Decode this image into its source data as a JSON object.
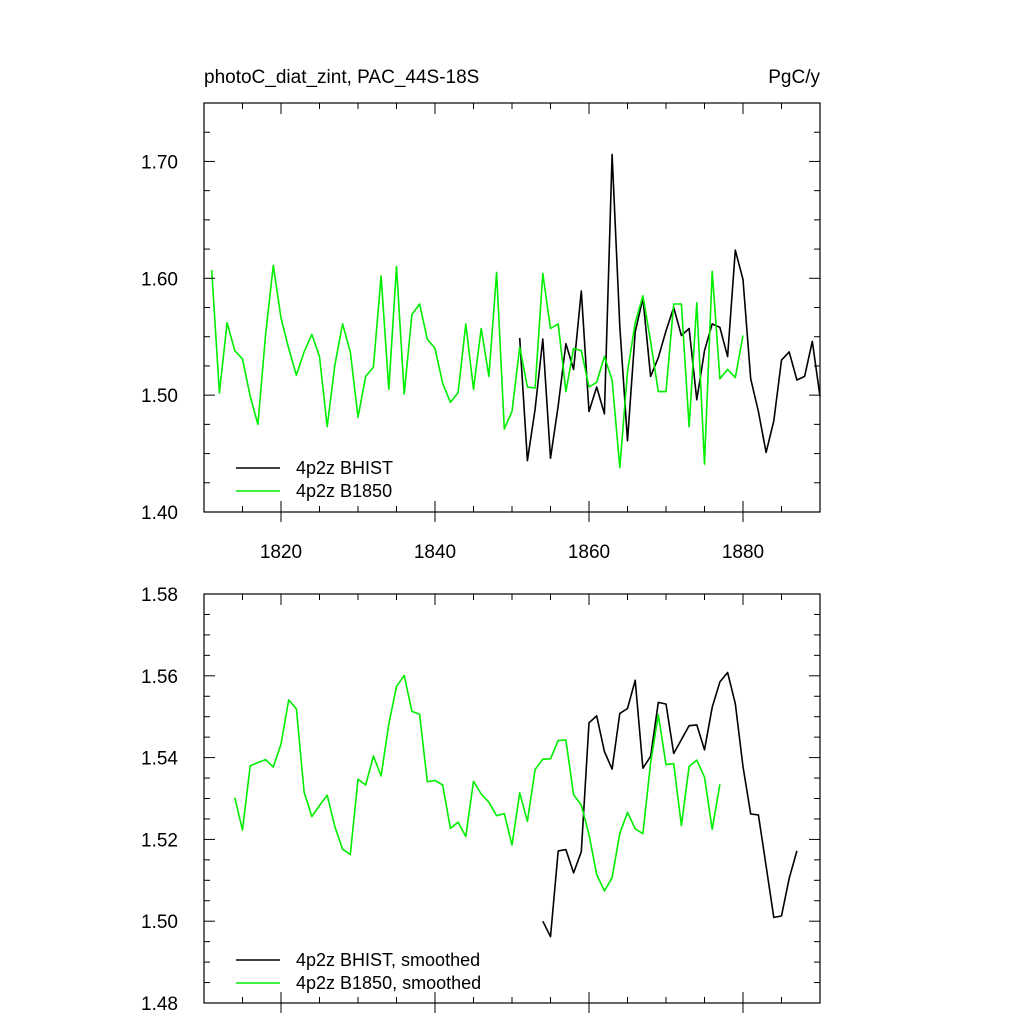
{
  "header": {
    "title": "photoC_diat_zint, PAC_44S-18S",
    "units": "PgC/y"
  },
  "colors": {
    "bhist": "#000000",
    "b1850": "#00ee00",
    "axis": "#000000"
  },
  "chart_data": [
    {
      "type": "line",
      "xlim": [
        1810,
        1890
      ],
      "ylim": [
        1.4,
        1.75
      ],
      "xticks": [
        1820,
        1840,
        1860,
        1880
      ],
      "xtick_labels": [
        "1820",
        "1840",
        "1860",
        "1880"
      ],
      "yticks": [
        1.4,
        1.5,
        1.6,
        1.7
      ],
      "ytick_labels": [
        "1.40",
        "1.50",
        "1.60",
        "1.70"
      ],
      "legend_position": "bottom-left",
      "series": [
        {
          "name": "4p2z BHIST",
          "color": "#000000",
          "x": [
            1851,
            1852,
            1853,
            1854,
            1855,
            1856,
            1857,
            1858,
            1859,
            1860,
            1861,
            1862,
            1863,
            1864,
            1865,
            1866,
            1867,
            1868,
            1869,
            1870,
            1871,
            1872,
            1873,
            1874,
            1875,
            1876,
            1877,
            1878,
            1879,
            1880,
            1881,
            1882,
            1883,
            1884,
            1885,
            1886,
            1887,
            1888,
            1889,
            1890
          ],
          "values": [
            1.549,
            1.444,
            1.488,
            1.548,
            1.446,
            1.491,
            1.544,
            1.522,
            1.589,
            1.486,
            1.507,
            1.484,
            1.706,
            1.559,
            1.461,
            1.554,
            1.583,
            1.516,
            1.532,
            1.555,
            1.575,
            1.551,
            1.557,
            1.496,
            1.538,
            1.561,
            1.558,
            1.533,
            1.624,
            1.599,
            1.514,
            1.486,
            1.451,
            1.478,
            1.53,
            1.537,
            1.513,
            1.516,
            1.546,
            1.499
          ]
        },
        {
          "name": "4p2z B1850",
          "color": "#00ee00",
          "x": [
            1811,
            1812,
            1813,
            1814,
            1815,
            1816,
            1817,
            1818,
            1819,
            1820,
            1821,
            1822,
            1823,
            1824,
            1825,
            1826,
            1827,
            1828,
            1829,
            1830,
            1831,
            1832,
            1833,
            1834,
            1835,
            1836,
            1837,
            1838,
            1839,
            1840,
            1841,
            1842,
            1843,
            1844,
            1845,
            1846,
            1847,
            1848,
            1849,
            1850,
            1851,
            1852,
            1853,
            1854,
            1855,
            1856,
            1857,
            1858,
            1859,
            1860,
            1861,
            1862,
            1863,
            1864,
            1865,
            1866,
            1867,
            1868,
            1869,
            1870,
            1871,
            1872,
            1873,
            1874,
            1875,
            1876,
            1877,
            1878,
            1879,
            1880
          ],
          "values": [
            1.607,
            1.502,
            1.562,
            1.538,
            1.531,
            1.499,
            1.475,
            1.552,
            1.611,
            1.566,
            1.54,
            1.517,
            1.537,
            1.552,
            1.533,
            1.473,
            1.526,
            1.561,
            1.537,
            1.481,
            1.516,
            1.524,
            1.602,
            1.505,
            1.61,
            1.501,
            1.569,
            1.578,
            1.548,
            1.54,
            1.51,
            1.494,
            1.502,
            1.561,
            1.505,
            1.557,
            1.516,
            1.605,
            1.471,
            1.486,
            1.541,
            1.507,
            1.506,
            1.604,
            1.557,
            1.561,
            1.503,
            1.54,
            1.538,
            1.507,
            1.511,
            1.533,
            1.513,
            1.438,
            1.52,
            1.562,
            1.585,
            1.546,
            1.503,
            1.503,
            1.578,
            1.578,
            1.473,
            1.579,
            1.441,
            1.606,
            1.514,
            1.522,
            1.515,
            1.551
          ]
        }
      ]
    },
    {
      "type": "line",
      "xlim": [
        1810,
        1890
      ],
      "ylim": [
        1.48,
        1.58
      ],
      "xticks": [
        1820,
        1840,
        1860,
        1880
      ],
      "xtick_labels": [],
      "yticks": [
        1.48,
        1.5,
        1.52,
        1.54,
        1.56,
        1.58
      ],
      "ytick_labels": [
        "1.48",
        "1.50",
        "1.52",
        "1.54",
        "1.56",
        "1.58"
      ],
      "legend_position": "bottom-left",
      "series": [
        {
          "name": "4p2z BHIST, smoothed",
          "color": "#000000",
          "x": [
            1854,
            1855,
            1856,
            1857,
            1858,
            1859,
            1860,
            1861,
            1862,
            1863,
            1864,
            1865,
            1866,
            1867,
            1868,
            1869,
            1870,
            1871,
            1872,
            1873,
            1874,
            1875,
            1876,
            1877,
            1878,
            1879,
            1880,
            1881,
            1882,
            1883,
            1884,
            1885,
            1886,
            1887
          ],
          "values": [
            1.5,
            1.4962,
            1.5172,
            1.5175,
            1.5118,
            1.517,
            1.5485,
            1.5502,
            1.5415,
            1.5372,
            1.5508,
            1.552,
            1.5589,
            1.5374,
            1.5403,
            1.5535,
            1.5531,
            1.541,
            1.5444,
            1.5478,
            1.548,
            1.5419,
            1.5523,
            1.5585,
            1.5608,
            1.5532,
            1.5378,
            1.5262,
            1.526,
            1.5135,
            1.5009,
            1.5013,
            1.5105,
            1.5172
          ]
        },
        {
          "name": "4p2z B1850, smoothed",
          "color": "#00ee00",
          "x": [
            1814,
            1815,
            1816,
            1817,
            1818,
            1819,
            1820,
            1821,
            1822,
            1823,
            1824,
            1825,
            1826,
            1827,
            1828,
            1829,
            1830,
            1831,
            1832,
            1833,
            1834,
            1835,
            1836,
            1837,
            1838,
            1839,
            1840,
            1841,
            1842,
            1843,
            1844,
            1845,
            1846,
            1847,
            1848,
            1849,
            1850,
            1851,
            1852,
            1853,
            1854,
            1855,
            1856,
            1857,
            1858,
            1859,
            1860,
            1861,
            1862,
            1863,
            1864,
            1865,
            1866,
            1867,
            1868,
            1869,
            1870,
            1871,
            1872,
            1873,
            1874,
            1875,
            1876,
            1877
          ],
          "values": [
            1.5302,
            1.5223,
            1.538,
            1.5388,
            1.5395,
            1.5377,
            1.5433,
            1.5541,
            1.5519,
            1.5316,
            1.5256,
            1.5283,
            1.5308,
            1.5231,
            1.5176,
            1.5163,
            1.5347,
            1.5333,
            1.5404,
            1.5355,
            1.5482,
            1.5574,
            1.5601,
            1.5513,
            1.5506,
            1.5341,
            1.5344,
            1.5333,
            1.5227,
            1.5242,
            1.5207,
            1.5342,
            1.5311,
            1.5291,
            1.5258,
            1.5263,
            1.5186,
            1.5314,
            1.5244,
            1.5371,
            1.5396,
            1.5397,
            1.5442,
            1.5443,
            1.5309,
            1.5284,
            1.5212,
            1.5114,
            1.5074,
            1.5106,
            1.5215,
            1.5266,
            1.5226,
            1.5214,
            1.5387,
            1.5505,
            1.5383,
            1.5385,
            1.5234,
            1.5378,
            1.5394,
            1.5352,
            1.5225,
            1.5335
          ]
        }
      ]
    }
  ]
}
